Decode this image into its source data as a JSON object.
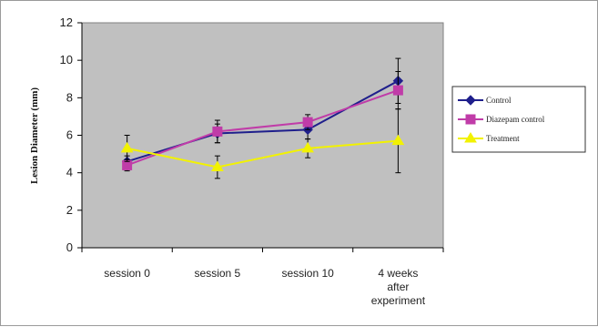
{
  "chart_data": {
    "type": "line",
    "title": "",
    "xlabel": "",
    "ylabel": "Lesion Diameter (mm)",
    "categories": [
      [
        "session 0"
      ],
      [
        "session 5"
      ],
      [
        "session 10"
      ],
      [
        "4 weeks",
        "after",
        "experiment"
      ]
    ],
    "ylim": [
      0,
      12
    ],
    "yticks": [
      0,
      2,
      4,
      6,
      8,
      10,
      12
    ],
    "grid": false,
    "legend_position": "right",
    "plot_background": "#c0c0c0",
    "series": [
      {
        "name": "Control",
        "color": "#1f1f8c",
        "marker": "diamond",
        "values": [
          4.6,
          6.1,
          6.3,
          8.9
        ],
        "errors": [
          0.3,
          0.5,
          0.5,
          1.2
        ]
      },
      {
        "name": "Diazepam control",
        "color": "#c03ca8",
        "marker": "square",
        "values": [
          4.4,
          6.2,
          6.7,
          8.4
        ],
        "errors": [
          0.3,
          0.6,
          0.4,
          1.0
        ]
      },
      {
        "name": "Treatment",
        "color": "#f2f200",
        "marker": "triangle",
        "values": [
          5.3,
          4.3,
          5.3,
          5.7
        ],
        "errors": [
          0.7,
          0.6,
          0.5,
          1.7
        ]
      }
    ]
  }
}
